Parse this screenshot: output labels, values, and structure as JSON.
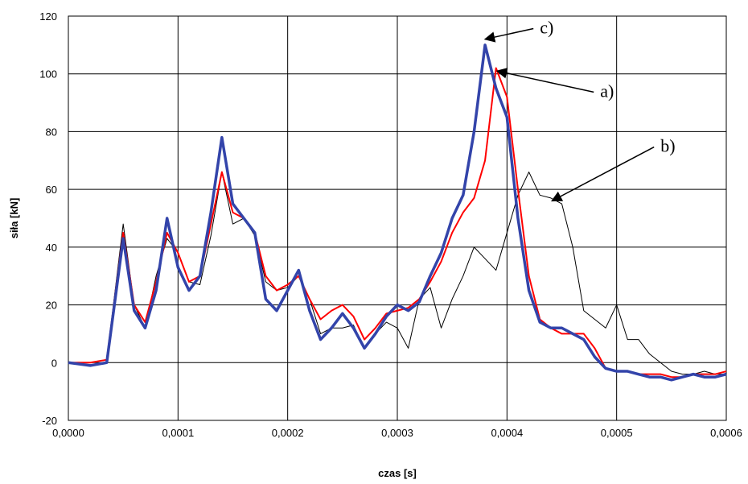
{
  "chart_data": {
    "type": "line",
    "title": "",
    "xlabel": "czas [s]",
    "ylabel": "siła [kN]",
    "xlim": [
      0,
      0.0006
    ],
    "ylim": [
      -20,
      120
    ],
    "x_ticks": [
      0,
      0.0001,
      0.0002,
      0.0003,
      0.0004,
      0.0005,
      0.0006
    ],
    "x_tick_labels": [
      "0,0000",
      "0,0001",
      "0,0002",
      "0,0003",
      "0,0004",
      "0,0005",
      "0,0006"
    ],
    "y_ticks": [
      -20,
      0,
      20,
      40,
      60,
      80,
      100,
      120
    ],
    "y_tick_labels": [
      "-20",
      "0",
      "20",
      "40",
      "60",
      "80",
      "100",
      "120"
    ],
    "grid": true,
    "legend": "none",
    "series": [
      {
        "color": "#000000",
        "line_width": 1,
        "x": [
          0,
          2e-05,
          3.5e-05,
          5e-05,
          6e-05,
          7e-05,
          8e-05,
          9e-05,
          0.0001,
          0.00011,
          0.00012,
          0.00013,
          0.00014,
          0.00015,
          0.00016,
          0.00017,
          0.00018,
          0.00019,
          0.0002,
          0.00021,
          0.00022,
          0.00023,
          0.00024,
          0.00025,
          0.00026,
          0.00027,
          0.00028,
          0.00029,
          0.0003,
          0.00031,
          0.00032,
          0.00033,
          0.00034,
          0.00035,
          0.00036,
          0.00037,
          0.00038,
          0.00039,
          0.0004,
          0.00041,
          0.00042,
          0.00043,
          0.00044,
          0.00045,
          0.00046,
          0.00047,
          0.00048,
          0.00049,
          0.0005,
          0.00051,
          0.00052,
          0.00053,
          0.00054,
          0.00055,
          0.00056,
          0.00057,
          0.00058,
          0.00059,
          0.0006
        ],
        "y": [
          0,
          0,
          1,
          48,
          20,
          12,
          30,
          43,
          38,
          28,
          27,
          44,
          66,
          48,
          50,
          44,
          28,
          25,
          26,
          30,
          22,
          10,
          12,
          12,
          13,
          5,
          10,
          14,
          12,
          5,
          22,
          26,
          12,
          22,
          30,
          40,
          36,
          32,
          45,
          58,
          66,
          58,
          57,
          55,
          40,
          18,
          15,
          12,
          20,
          8,
          8,
          3,
          0,
          -3,
          -4,
          -4,
          -3,
          -4,
          -4
        ]
      },
      {
        "color": "#ff0000",
        "line_width": 2,
        "x": [
          0,
          2e-05,
          3.5e-05,
          5e-05,
          6e-05,
          7e-05,
          8e-05,
          9e-05,
          0.0001,
          0.00011,
          0.00012,
          0.00013,
          0.00014,
          0.00015,
          0.00016,
          0.00017,
          0.00018,
          0.00019,
          0.0002,
          0.00021,
          0.00022,
          0.00023,
          0.00024,
          0.00025,
          0.00026,
          0.00027,
          0.00028,
          0.00029,
          0.0003,
          0.00031,
          0.00032,
          0.00033,
          0.00034,
          0.00035,
          0.00036,
          0.00037,
          0.00038,
          0.00039,
          0.0004,
          0.00041,
          0.00042,
          0.00043,
          0.00044,
          0.00045,
          0.00046,
          0.00047,
          0.00048,
          0.00049,
          0.0005,
          0.00051,
          0.00052,
          0.00053,
          0.00054,
          0.00055,
          0.00056,
          0.00057,
          0.00058,
          0.00059,
          0.0006
        ],
        "y": [
          0,
          0,
          1,
          45,
          20,
          14,
          28,
          45,
          38,
          28,
          30,
          48,
          66,
          52,
          50,
          45,
          30,
          25,
          27,
          30,
          22,
          15,
          18,
          20,
          16,
          8,
          12,
          17,
          18,
          19,
          22,
          28,
          35,
          45,
          52,
          57,
          70,
          102,
          92,
          60,
          30,
          15,
          12,
          10,
          10,
          10,
          5,
          -2,
          -3,
          -3,
          -4,
          -4,
          -4,
          -5,
          -5,
          -4,
          -4,
          -4,
          -3
        ]
      },
      {
        "color": "#3344aa",
        "line_width": 3.5,
        "x": [
          0,
          2e-05,
          3.5e-05,
          5e-05,
          6e-05,
          7e-05,
          8e-05,
          9e-05,
          0.0001,
          0.00011,
          0.00012,
          0.00013,
          0.00014,
          0.00015,
          0.00016,
          0.00017,
          0.00018,
          0.00019,
          0.0002,
          0.00021,
          0.00022,
          0.00023,
          0.00024,
          0.00025,
          0.00026,
          0.00027,
          0.00028,
          0.00029,
          0.0003,
          0.00031,
          0.00032,
          0.00033,
          0.00034,
          0.00035,
          0.00036,
          0.00037,
          0.00038,
          0.00039,
          0.0004,
          0.00041,
          0.00042,
          0.00043,
          0.00044,
          0.00045,
          0.00046,
          0.00047,
          0.00048,
          0.00049,
          0.0005,
          0.00051,
          0.00052,
          0.00053,
          0.00054,
          0.00055,
          0.00056,
          0.00057,
          0.00058,
          0.00059,
          0.0006
        ],
        "y": [
          0,
          -1,
          0,
          43,
          18,
          12,
          25,
          50,
          33,
          25,
          30,
          52,
          78,
          55,
          50,
          45,
          22,
          18,
          25,
          32,
          18,
          8,
          12,
          17,
          12,
          5,
          10,
          16,
          20,
          18,
          21,
          30,
          38,
          50,
          58,
          80,
          110,
          95,
          85,
          50,
          25,
          14,
          12,
          12,
          10,
          8,
          2,
          -2,
          -3,
          -3,
          -4,
          -5,
          -5,
          -6,
          -5,
          -4,
          -5,
          -5,
          -4
        ]
      }
    ],
    "annotations": [
      {
        "text": "c)",
        "x": 0.00043,
        "y": 114,
        "point_x": 0.00038,
        "point_y": 112
      },
      {
        "text": "a)",
        "x": 0.000485,
        "y": 92,
        "point_x": 0.000391,
        "point_y": 101
      },
      {
        "text": "b)",
        "x": 0.00054,
        "y": 73,
        "point_x": 0.000441,
        "point_y": 56
      }
    ]
  }
}
